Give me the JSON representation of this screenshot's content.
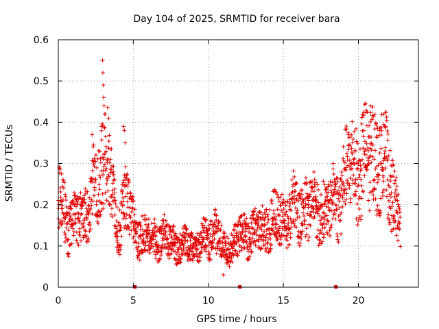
{
  "chart_data": {
    "type": "scatter",
    "title": "Day 104 of 2025, SRMTID for receiver bara",
    "xlabel": "GPS time / hours",
    "ylabel": "SRMTID / TECUs",
    "xlim": [
      0,
      24
    ],
    "ylim": [
      0,
      0.6
    ],
    "x_ticks": [
      0,
      5,
      10,
      15,
      20
    ],
    "y_ticks": [
      0,
      0.1,
      0.2,
      0.3,
      0.4,
      0.5,
      0.6
    ],
    "x_tick_labels": [
      "0",
      "5",
      "10",
      "15",
      "20"
    ],
    "y_tick_labels": [
      "0",
      "0.1",
      "0.2",
      "0.3",
      "0.4",
      "0.5",
      "0.6"
    ],
    "grid": true,
    "marker": "+",
    "series_color": "#e00000",
    "gap_markers_x": [
      5.1,
      12.1,
      18.5
    ],
    "trend_profile": [
      [
        0.0,
        0.22
      ],
      [
        0.5,
        0.17
      ],
      [
        1.0,
        0.15
      ],
      [
        1.5,
        0.17
      ],
      [
        2.0,
        0.2
      ],
      [
        2.5,
        0.24
      ],
      [
        3.0,
        0.3
      ],
      [
        3.3,
        0.36
      ],
      [
        3.6,
        0.2
      ],
      [
        4.0,
        0.14
      ],
      [
        4.5,
        0.22
      ],
      [
        5.0,
        0.15
      ],
      [
        5.5,
        0.13
      ],
      [
        6.0,
        0.12
      ],
      [
        7.0,
        0.12
      ],
      [
        8.0,
        0.1
      ],
      [
        9.0,
        0.1
      ],
      [
        10.0,
        0.12
      ],
      [
        10.5,
        0.14
      ],
      [
        11.0,
        0.09
      ],
      [
        11.5,
        0.1
      ],
      [
        12.0,
        0.12
      ],
      [
        12.5,
        0.13
      ],
      [
        13.0,
        0.13
      ],
      [
        14.0,
        0.15
      ],
      [
        15.0,
        0.17
      ],
      [
        16.0,
        0.19
      ],
      [
        17.0,
        0.2
      ],
      [
        18.0,
        0.18
      ],
      [
        19.0,
        0.25
      ],
      [
        19.5,
        0.3
      ],
      [
        20.0,
        0.29
      ],
      [
        20.5,
        0.3
      ],
      [
        21.0,
        0.33
      ],
      [
        21.5,
        0.3
      ],
      [
        22.0,
        0.28
      ],
      [
        22.5,
        0.2
      ],
      [
        22.8,
        0.15
      ]
    ],
    "notable_points": [
      {
        "x": 2.25,
        "y": 0.37
      },
      {
        "x": 2.9,
        "y": 0.39
      },
      {
        "x": 2.95,
        "y": 0.55
      },
      {
        "x": 2.97,
        "y": 0.52
      },
      {
        "x": 3.0,
        "y": 0.49
      },
      {
        "x": 3.02,
        "y": 0.46
      },
      {
        "x": 3.05,
        "y": 0.44
      },
      {
        "x": 3.1,
        "y": 0.42
      },
      {
        "x": 4.35,
        "y": 0.39
      },
      {
        "x": 4.4,
        "y": 0.38
      },
      {
        "x": 4.45,
        "y": 0.35
      },
      {
        "x": 11.0,
        "y": 0.03
      },
      {
        "x": 20.8,
        "y": 0.44
      },
      {
        "x": 21.7,
        "y": 0.42
      },
      {
        "x": 21.75,
        "y": 0.39
      },
      {
        "x": 21.4,
        "y": 0.38
      }
    ]
  }
}
